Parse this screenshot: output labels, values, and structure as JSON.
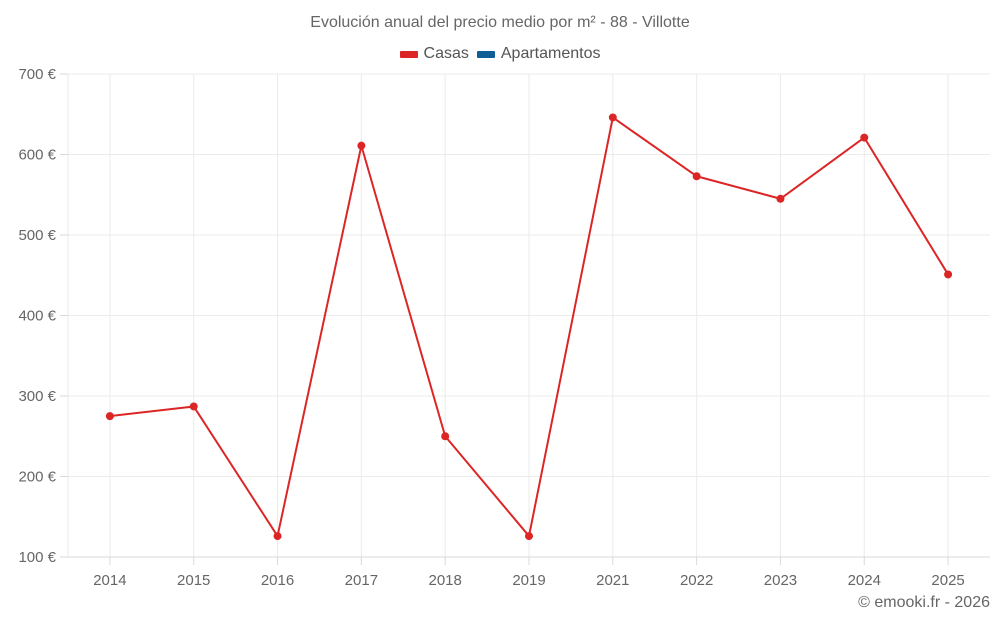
{
  "header": {
    "title": "Evolución anual del precio medio por m² - 88 - Villotte"
  },
  "legend": [
    {
      "label": "Casas",
      "color": "#dc2626"
    },
    {
      "label": "Apartamentos",
      "color": "#0f5f96"
    }
  ],
  "footer": {
    "credit": "© emooki.fr - 2026"
  },
  "colors": {
    "series_casas": "#dc2626",
    "series_apartamentos": "#0f5f96",
    "grid": "#ebebeb",
    "axis": "#d9d9d9",
    "text": "#666666"
  },
  "chart_data": {
    "type": "line",
    "title": "Evolución anual del precio medio por m² - 88 - Villotte",
    "xlabel": "",
    "ylabel": "",
    "categories": [
      "2014",
      "2015",
      "2016",
      "2017",
      "2018",
      "2019",
      "2021",
      "2022",
      "2023",
      "2024",
      "2025"
    ],
    "series": [
      {
        "name": "Casas",
        "color": "#dc2626",
        "values": [
          275,
          287,
          126,
          611,
          250,
          126,
          646,
          573,
          545,
          621,
          451
        ]
      },
      {
        "name": "Apartamentos",
        "color": "#0f5f96",
        "values": []
      }
    ],
    "ylim": [
      100,
      700
    ],
    "yticks": [
      100,
      200,
      300,
      400,
      500,
      600,
      700
    ],
    "ytick_labels": [
      "100 €",
      "200 €",
      "300 €",
      "400 €",
      "500 €",
      "600 €",
      "700 €"
    ],
    "grid": true,
    "legend_position": "top"
  }
}
